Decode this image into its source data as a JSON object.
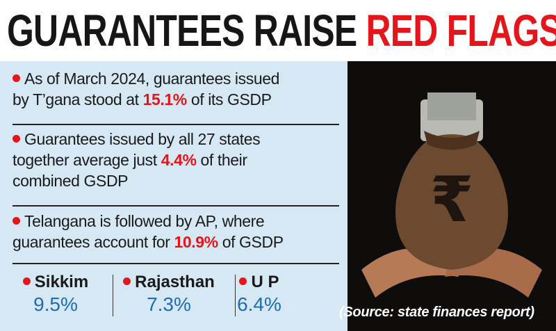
{
  "title": {
    "part1": "GUARANTEES RAISE",
    "part2": "RED FLAGS"
  },
  "bullets": [
    {
      "parts": [
        "As of March 2024, guarantees issued",
        "by T’gana stood at",
        "15.1%",
        "of its GSDP"
      ]
    },
    {
      "parts": [
        "Guarantees issued by all 27 states",
        "together average just",
        "4.4%",
        "of their",
        "combined GSDP"
      ]
    },
    {
      "parts": [
        "Telangana is followed by AP, where",
        "guarantees account for",
        "10.9%",
        "of GSDP"
      ]
    }
  ],
  "stats": [
    {
      "state": "Sikkim",
      "value": "9.5%"
    },
    {
      "state": "Rajasthan",
      "value": "7.3%"
    },
    {
      "state": "U P",
      "value": "6.4%"
    }
  ],
  "source": "(Source: state finances report)"
}
